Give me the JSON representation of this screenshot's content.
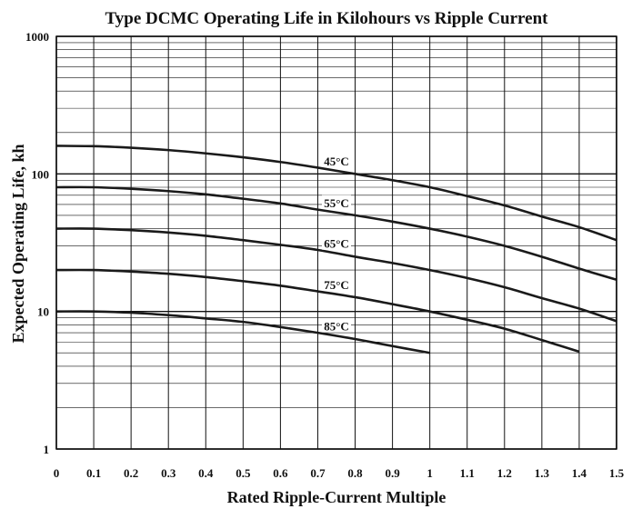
{
  "chart_data": {
    "type": "line",
    "title": "Type DCMC Operating Life in Kilohours vs Ripple Current",
    "xlabel": "Rated Ripple-Current Multiple",
    "ylabel": "Expected Operating Life, kh",
    "x_scale": "linear",
    "y_scale": "log",
    "xlim": [
      0,
      1.5
    ],
    "ylim": [
      1,
      1000
    ],
    "x_ticks": [
      "0",
      "0.1",
      "0.2",
      "0.3",
      "0.4",
      "0.5",
      "0.6",
      "0.7",
      "0.8",
      "0.9",
      "1",
      "1.1",
      "1.2",
      "1.3",
      "1.4",
      "1.5"
    ],
    "y_ticks": [
      "1",
      "10",
      "100",
      "1000"
    ],
    "grid": true,
    "colors": {
      "curve": "#1a1a1a",
      "grid": "#111111",
      "background": "#ffffff"
    },
    "series": [
      {
        "name": "45°C",
        "label_x": 0.75,
        "x": [
          0,
          0.1,
          0.2,
          0.3,
          0.4,
          0.5,
          0.6,
          0.7,
          0.8,
          0.9,
          1.0,
          1.1,
          1.2,
          1.3,
          1.4,
          1.5
        ],
        "y": [
          160,
          159,
          155,
          149,
          141,
          132,
          122,
          111,
          100,
          90,
          80,
          69,
          59,
          49,
          41,
          33
        ]
      },
      {
        "name": "55°C",
        "label_x": 0.75,
        "x": [
          0,
          0.1,
          0.2,
          0.3,
          0.4,
          0.5,
          0.6,
          0.7,
          0.8,
          0.9,
          1.0,
          1.1,
          1.2,
          1.3,
          1.4,
          1.5
        ],
        "y": [
          80,
          80,
          78,
          75,
          71,
          66,
          61,
          55,
          50,
          45,
          40,
          35,
          30,
          25,
          20.5,
          17
        ]
      },
      {
        "name": "65°C",
        "label_x": 0.75,
        "x": [
          0,
          0.1,
          0.2,
          0.3,
          0.4,
          0.5,
          0.6,
          0.7,
          0.8,
          0.9,
          1.0,
          1.1,
          1.2,
          1.3,
          1.4,
          1.5
        ],
        "y": [
          40,
          40,
          39,
          37.5,
          35.5,
          33,
          30.5,
          28,
          25,
          22.5,
          20,
          17.5,
          15,
          12.5,
          10.5,
          8.5
        ]
      },
      {
        "name": "75°C",
        "label_x": 0.75,
        "x": [
          0,
          0.1,
          0.2,
          0.3,
          0.4,
          0.5,
          0.6,
          0.7,
          0.8,
          0.9,
          1.0,
          1.1,
          1.2,
          1.3,
          1.4
        ],
        "y": [
          20,
          20,
          19.5,
          18.8,
          17.8,
          16.6,
          15.4,
          14,
          12.7,
          11.3,
          10,
          8.7,
          7.5,
          6.2,
          5.1
        ]
      },
      {
        "name": "85°C",
        "label_x": 0.75,
        "x": [
          0,
          0.1,
          0.2,
          0.3,
          0.4,
          0.5,
          0.6,
          0.7,
          0.8,
          0.9,
          1.0
        ],
        "y": [
          10,
          10,
          9.8,
          9.4,
          8.9,
          8.4,
          7.7,
          7.0,
          6.3,
          5.6,
          5.0
        ]
      }
    ]
  }
}
